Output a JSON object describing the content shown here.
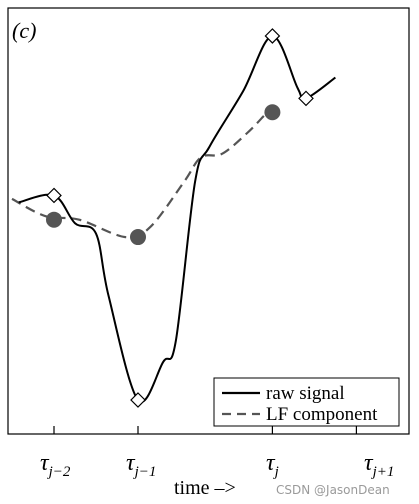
{
  "panel_label": "(c)",
  "x_axis": {
    "title": "time –>",
    "ticks": [
      {
        "base": "τ",
        "sub": "j−2"
      },
      {
        "base": "τ",
        "sub": "j−1"
      },
      {
        "base": "τ",
        "sub": "j"
      },
      {
        "base": "τ",
        "sub": "j+1"
      }
    ]
  },
  "legend": {
    "items": [
      {
        "label": "raw signal",
        "style": "solid",
        "color": "#000000"
      },
      {
        "label": "LF component",
        "style": "dashed",
        "color": "#555555"
      }
    ]
  },
  "watermark": "CSDN @JasonDean",
  "colors": {
    "raw": "#000000",
    "lf": "#555555",
    "dot": "#555555",
    "frame": "#000000"
  },
  "series": {
    "raw_signal": [
      {
        "t": -0.42,
        "v": 0.52
      },
      {
        "t": 0.0,
        "v": 0.54
      },
      {
        "t": 0.25,
        "v": 0.46
      },
      {
        "t": 0.5,
        "v": 0.43
      },
      {
        "t": 0.65,
        "v": 0.25
      },
      {
        "t": 1.0,
        "v": -0.05
      },
      {
        "t": 1.3,
        "v": 0.06
      },
      {
        "t": 1.45,
        "v": 0.12
      },
      {
        "t": 1.68,
        "v": 0.58
      },
      {
        "t": 1.85,
        "v": 0.68
      },
      {
        "t": 2.25,
        "v": 0.84
      },
      {
        "t": 2.6,
        "v": 1.0
      },
      {
        "t": 2.9,
        "v": 0.85
      },
      {
        "t": 3.0,
        "v": 0.82
      },
      {
        "t": 3.35,
        "v": 0.88
      }
    ],
    "lf_component": [
      {
        "t": -0.5,
        "v": 0.53
      },
      {
        "t": -0.1,
        "v": 0.48
      },
      {
        "t": 0.3,
        "v": 0.47
      },
      {
        "t": 0.85,
        "v": 0.42
      },
      {
        "t": 1.15,
        "v": 0.45
      },
      {
        "t": 1.55,
        "v": 0.58
      },
      {
        "t": 1.75,
        "v": 0.65
      },
      {
        "t": 2.0,
        "v": 0.66
      },
      {
        "t": 2.3,
        "v": 0.72
      },
      {
        "t": 2.5,
        "v": 0.77
      }
    ],
    "extrema_markers": [
      {
        "t": 0.0,
        "v": 0.54
      },
      {
        "t": 1.0,
        "v": -0.05
      },
      {
        "t": 2.6,
        "v": 1.0
      },
      {
        "t": 3.0,
        "v": 0.82
      }
    ],
    "lf_dots": [
      {
        "t": 0.0,
        "v": 0.47
      },
      {
        "t": 1.0,
        "v": 0.42
      },
      {
        "t": 2.6,
        "v": 0.78
      }
    ]
  },
  "tick_positions_t": [
    0,
    1,
    2.6,
    3.6
  ]
}
